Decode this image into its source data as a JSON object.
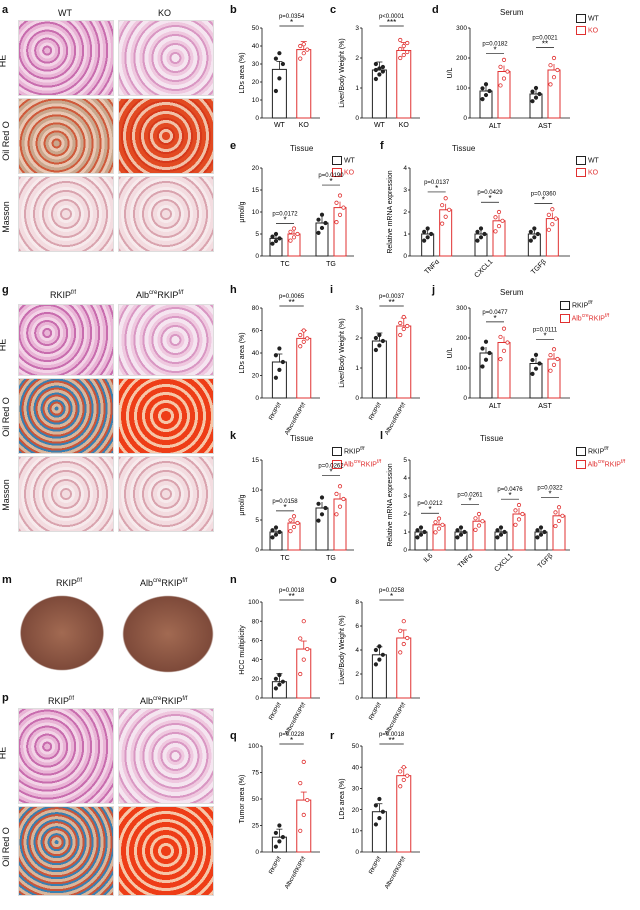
{
  "panels": {
    "a": {
      "letter": "a",
      "col_wt": "WT",
      "col_ko": "KO",
      "row_he": "HE",
      "row_oro": "Oil Red O",
      "row_mas": "Masson"
    },
    "b": {
      "letter": "b",
      "ylabel": "LDs area (%)",
      "p": "p=0.0354",
      "stars": "*",
      "cats": [
        "WT",
        "KO"
      ]
    },
    "c": {
      "letter": "c",
      "ylabel": "Liver/Body Weight (%)",
      "p": "p<0.0001",
      "stars": "***",
      "cats": [
        "WT",
        "KO"
      ]
    },
    "d": {
      "letter": "d",
      "title": "Serum",
      "ylabel": "U/L",
      "p1": "p=0.0182",
      "p2": "p=0.0021",
      "s1": "*",
      "s2": "**",
      "cats": [
        "ALT",
        "AST"
      ],
      "leg": [
        "WT",
        "KO"
      ]
    },
    "e": {
      "letter": "e",
      "title": "Tissue",
      "ylabel": "μmol/g",
      "p1": "p=0.0172",
      "p2": "p=0.0190",
      "s1": "*",
      "s2": "*",
      "cats": [
        "TC",
        "TG"
      ],
      "leg": [
        "WT",
        "KO"
      ]
    },
    "f": {
      "letter": "f",
      "title": "Tissue",
      "ylabel": "Relative mRNA expression",
      "p1": "p=0.0137",
      "p2": "p=0.0429",
      "p3": "p=0.0360",
      "s": "*",
      "cats": [
        "TNFα",
        "CXCL1",
        "TGFβ"
      ],
      "leg": [
        "WT",
        "KO"
      ]
    },
    "g": {
      "letter": "g",
      "col1": "RKIP",
      "col1sup": "f/f",
      "col2a": "Alb",
      "col2sup1": "cre",
      "col2b": "RKIP",
      "col2sup2": "f/f",
      "row_he": "HE",
      "row_oro": "Oil Red O",
      "row_mas": "Masson"
    },
    "h": {
      "letter": "h",
      "ylabel": "LDs area (%)",
      "p": "p=0.0065",
      "stars": "**"
    },
    "i": {
      "letter": "i",
      "ylabel": "Liver/Body Weight (%)",
      "p": "p=0.0037",
      "stars": "**"
    },
    "j": {
      "letter": "j",
      "title": "Serum",
      "ylabel": "U/L",
      "p1": "p=0.0477",
      "p2": "p=0.0111",
      "s": "*",
      "cats": [
        "ALT",
        "AST"
      ]
    },
    "k": {
      "letter": "k",
      "title": "Tissue",
      "ylabel": "μmol/g",
      "p1": "p=0.0158",
      "p2": "p=0.0262",
      "s": "*",
      "cats": [
        "TC",
        "TG"
      ]
    },
    "l": {
      "letter": "l",
      "title": "Tissue",
      "ylabel": "Relative mRNA expression",
      "p1": "p=0.0212",
      "p2": "p=0.0261",
      "p3": "p=0.0476",
      "p4": "p=0.0322",
      "s": "*",
      "cats": [
        "IL6",
        "TNFα",
        "CXCL1",
        "TGFβ"
      ]
    },
    "m": {
      "letter": "m"
    },
    "n": {
      "letter": "n",
      "ylabel": "HCC multiplicity",
      "p": "p=0.0018",
      "stars": "**"
    },
    "o": {
      "letter": "o",
      "ylabel": "Liver/Body Weight (%)",
      "p": "p=0.0258",
      "stars": "*"
    },
    "p": {
      "letter": "p",
      "row_he": "HE",
      "row_oro": "Oil Red O"
    },
    "q": {
      "letter": "q",
      "ylabel": "Tumor area (%)",
      "p": "p=0.0228",
      "stars": "*"
    },
    "r": {
      "letter": "r",
      "ylabel": "LDs area (%)",
      "p": "p=0.0018",
      "stars": "**"
    }
  },
  "colors": {
    "wt": "#222222",
    "ko": "#e03030"
  },
  "chart_data": [
    {
      "id": "b",
      "type": "bar",
      "categories": [
        "WT",
        "KO"
      ],
      "values": [
        27,
        38
      ],
      "ylim": [
        0,
        50
      ],
      "yticks": [
        0,
        10,
        20,
        30,
        40,
        50
      ],
      "points": [
        [
          15,
          22,
          30,
          33,
          36
        ],
        [
          33,
          36,
          38,
          40,
          41
        ]
      ]
    },
    {
      "id": "c",
      "type": "bar",
      "categories": [
        "WT",
        "KO"
      ],
      "values": [
        1.6,
        2.25
      ],
      "ylim": [
        0,
        3
      ],
      "yticks": [
        0,
        1,
        2,
        3
      ],
      "points": [
        [
          1.3,
          1.45,
          1.55,
          1.6,
          1.65,
          1.7,
          1.8
        ],
        [
          2.0,
          2.1,
          2.2,
          2.3,
          2.4,
          2.5,
          2.6
        ]
      ]
    },
    {
      "id": "d",
      "type": "bar",
      "categories": [
        "ALT",
        "AST"
      ],
      "series": [
        {
          "name": "WT",
          "values": [
            90,
            80
          ]
        },
        {
          "name": "KO",
          "values": [
            155,
            160
          ]
        }
      ],
      "ylim": [
        0,
        300
      ],
      "yticks": [
        0,
        100,
        200,
        300
      ]
    },
    {
      "id": "e",
      "type": "bar",
      "categories": [
        "TC",
        "TG"
      ],
      "series": [
        {
          "name": "WT",
          "values": [
            4,
            7.5
          ]
        },
        {
          "name": "KO",
          "values": [
            5,
            11
          ]
        }
      ],
      "ylim": [
        0,
        20
      ],
      "yticks": [
        0,
        5,
        10,
        15,
        20
      ]
    },
    {
      "id": "f",
      "type": "bar",
      "categories": [
        "TNFα",
        "CXCL1",
        "TGFβ"
      ],
      "series": [
        {
          "name": "WT",
          "values": [
            1,
            1,
            1
          ]
        },
        {
          "name": "KO",
          "values": [
            2.1,
            1.6,
            1.7
          ]
        }
      ],
      "ylim": [
        0,
        4
      ],
      "yticks": [
        0,
        1,
        2,
        3,
        4
      ]
    },
    {
      "id": "h",
      "type": "bar",
      "categories": [
        "RKIPf/f",
        "AlbcreRKIPf/f"
      ],
      "values": [
        32,
        53
      ],
      "ylim": [
        0,
        80
      ],
      "yticks": [
        0,
        20,
        40,
        60,
        80
      ],
      "points": [
        [
          18,
          25,
          32,
          38,
          44
        ],
        [
          46,
          50,
          53,
          56,
          60
        ]
      ]
    },
    {
      "id": "i",
      "type": "bar",
      "categories": [
        "RKIPf/f",
        "AlbcreRKIPf/f"
      ],
      "values": [
        1.9,
        2.4
      ],
      "ylim": [
        0,
        3
      ],
      "yticks": [
        0,
        1,
        2,
        3
      ],
      "points": [
        [
          1.6,
          1.75,
          1.9,
          2.0,
          2.1
        ],
        [
          2.1,
          2.3,
          2.4,
          2.5,
          2.7
        ]
      ]
    },
    {
      "id": "j",
      "type": "bar",
      "categories": [
        "ALT",
        "AST"
      ],
      "series": [
        {
          "name": "RKIPf/f",
          "values": [
            150,
            115
          ]
        },
        {
          "name": "AlbcreRKIPf/f",
          "values": [
            185,
            130
          ]
        }
      ],
      "ylim": [
        0,
        300
      ],
      "yticks": [
        0,
        100,
        200,
        300
      ]
    },
    {
      "id": "k",
      "type": "bar",
      "categories": [
        "TC",
        "TG"
      ],
      "series": [
        {
          "name": "RKIPf/f",
          "values": [
            3,
            7
          ]
        },
        {
          "name": "AlbcreRKIPf/f",
          "values": [
            4.5,
            8.5
          ]
        }
      ],
      "ylim": [
        0,
        15
      ],
      "yticks": [
        0,
        5,
        10,
        15
      ]
    },
    {
      "id": "l",
      "type": "bar",
      "categories": [
        "IL6",
        "TNFα",
        "CXCL1",
        "TGFβ"
      ],
      "series": [
        {
          "name": "RKIPf/f",
          "values": [
            1,
            1,
            1,
            1
          ]
        },
        {
          "name": "AlbcreRKIPf/f",
          "values": [
            1.4,
            1.6,
            2.0,
            1.9
          ]
        }
      ],
      "ylim": [
        0,
        5
      ],
      "yticks": [
        0,
        1,
        2,
        3,
        4,
        5
      ]
    },
    {
      "id": "n",
      "type": "bar",
      "categories": [
        "RKIPf/f",
        "AlbcreRKIPf/f"
      ],
      "values": [
        17,
        51
      ],
      "ylim": [
        0,
        100
      ],
      "yticks": [
        0,
        20,
        40,
        60,
        80,
        100
      ],
      "points": [
        [
          10,
          14,
          17,
          20,
          24
        ],
        [
          25,
          40,
          51,
          62,
          80
        ]
      ]
    },
    {
      "id": "o",
      "type": "bar",
      "categories": [
        "RKIPf/f",
        "AlbcreRKIPf/f"
      ],
      "values": [
        3.6,
        5.0
      ],
      "ylim": [
        0,
        8
      ],
      "yticks": [
        0,
        2,
        4,
        6,
        8
      ],
      "points": [
        [
          2.8,
          3.2,
          3.6,
          4.0,
          4.3
        ],
        [
          3.8,
          4.5,
          5.0,
          5.6,
          6.4
        ]
      ]
    },
    {
      "id": "q",
      "type": "bar",
      "categories": [
        "RKIPf/f",
        "AlbcreRKIPf/f"
      ],
      "values": [
        14,
        49
      ],
      "ylim": [
        0,
        100
      ],
      "yticks": [
        0,
        25,
        50,
        75,
        100
      ],
      "points": [
        [
          5,
          10,
          14,
          18,
          25
        ],
        [
          20,
          35,
          49,
          65,
          85
        ]
      ]
    },
    {
      "id": "r",
      "type": "bar",
      "categories": [
        "RKIPf/f",
        "AlbcreRKIPf/f"
      ],
      "values": [
        19,
        36
      ],
      "ylim": [
        0,
        50
      ],
      "yticks": [
        0,
        10,
        20,
        30,
        40,
        50
      ],
      "points": [
        [
          13,
          16,
          19,
          22,
          25
        ],
        [
          31,
          34,
          36,
          38,
          40
        ]
      ]
    }
  ]
}
